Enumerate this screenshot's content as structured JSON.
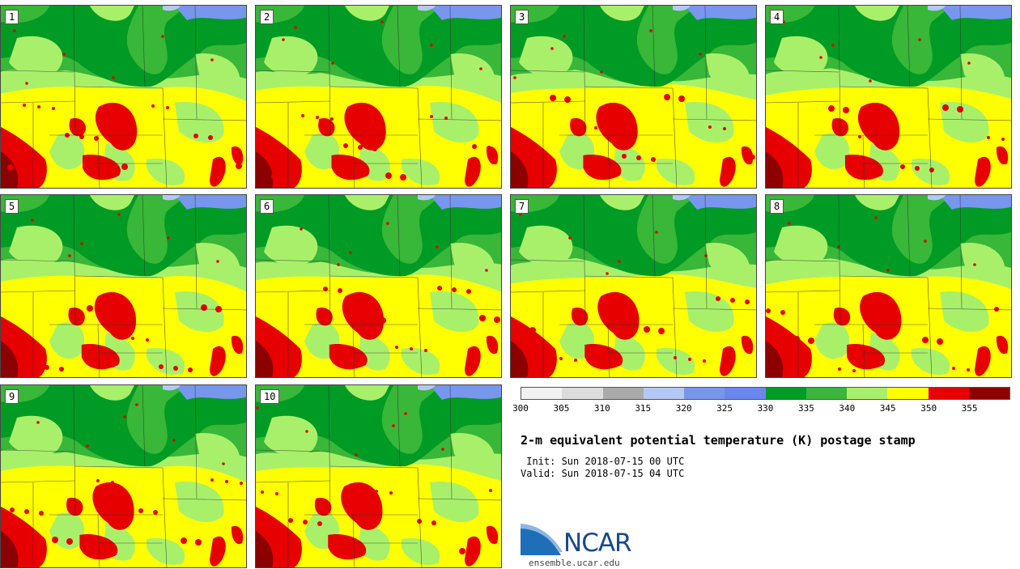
{
  "panels": [
    {
      "label": "1"
    },
    {
      "label": "2"
    },
    {
      "label": "3"
    },
    {
      "label": "4"
    },
    {
      "label": "5"
    },
    {
      "label": "6"
    },
    {
      "label": "7"
    },
    {
      "label": "8"
    },
    {
      "label": "9"
    },
    {
      "label": "10"
    }
  ],
  "colorbar": {
    "colors": [
      "#f2f2f2",
      "#dcdcdc",
      "#aaaaaa",
      "#b4c8f5",
      "#7896ee",
      "#6a86f0",
      "#009b24",
      "#38b738",
      "#a9f06a",
      "#ffff00",
      "#e60000",
      "#8c0000"
    ],
    "tick_labels": [
      "300",
      "305",
      "310",
      "315",
      "320",
      "325",
      "330",
      "335",
      "340",
      "345",
      "350",
      "355"
    ]
  },
  "title": "2-m equivalent potential temperature (K) postage stamp",
  "init_text": " Init: Sun 2018-07-15 00 UTC",
  "valid_text": "Valid: Sun 2018-07-15 04 UTC",
  "logo": {
    "text": "NCAR",
    "url": "ensemble.ucar.edu"
  },
  "colors": {
    "dark_green": "#009b24",
    "mid_green": "#38b738",
    "light_green": "#a9f06a",
    "yellow": "#ffff00",
    "red": "#e60000",
    "dark_red": "#8c0000",
    "blue": "#7896ee",
    "light_blue": "#b4c8f5"
  }
}
